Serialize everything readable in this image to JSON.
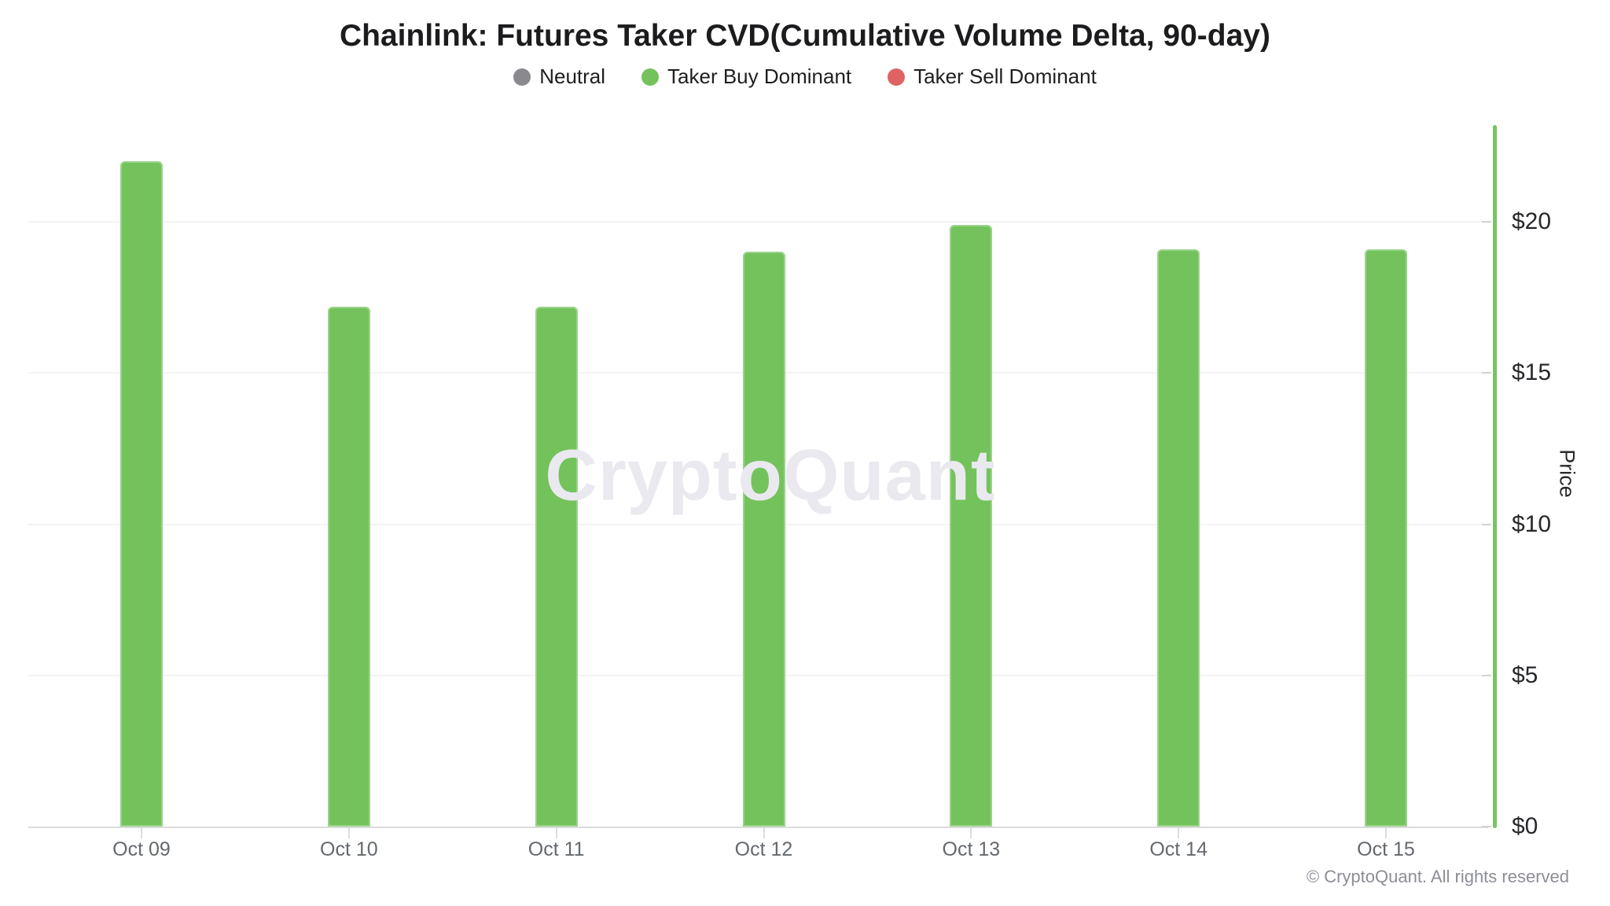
{
  "header": {
    "title": "Chainlink: Futures Taker CVD(Cumulative Volume Delta, 90-day)"
  },
  "legend": [
    {
      "label": "Neutral",
      "color": "#8a8a8e",
      "icon": "circle"
    },
    {
      "label": "Taker Buy Dominant",
      "color": "#74c25c",
      "icon": "circle"
    },
    {
      "label": "Taker Sell Dominant",
      "color": "#e06363",
      "icon": "circle"
    }
  ],
  "chart_data": {
    "type": "bar",
    "title": "Chainlink: Futures Taker CVD(Cumulative Volume Delta, 90-day)",
    "categories": [
      "Oct 09",
      "Oct 10",
      "Oct 11",
      "Oct 12",
      "Oct 13",
      "Oct 14",
      "Oct 15"
    ],
    "values": [
      22.0,
      17.2,
      17.2,
      19.0,
      19.9,
      19.1,
      19.1
    ],
    "point_status": [
      "Taker Buy Dominant",
      "Taker Buy Dominant",
      "Taker Buy Dominant",
      "Taker Buy Dominant",
      "Taker Buy Dominant",
      "Taker Buy Dominant",
      "Taker Buy Dominant"
    ],
    "xlabel": "",
    "ylabel": "Price",
    "y_ticks": [
      "$0",
      "$5",
      "$10",
      "$15",
      "$20"
    ],
    "y_tick_values": [
      0,
      5,
      10,
      15,
      20
    ],
    "ylim": [
      0,
      23.2
    ],
    "grid": true,
    "legend_position": "top",
    "axis_line_color": "#79c563",
    "bar_default_color": "#74c25c"
  },
  "watermark": "CryptoQuant",
  "footer": {
    "copyright": "© CryptoQuant. All rights reserved"
  }
}
